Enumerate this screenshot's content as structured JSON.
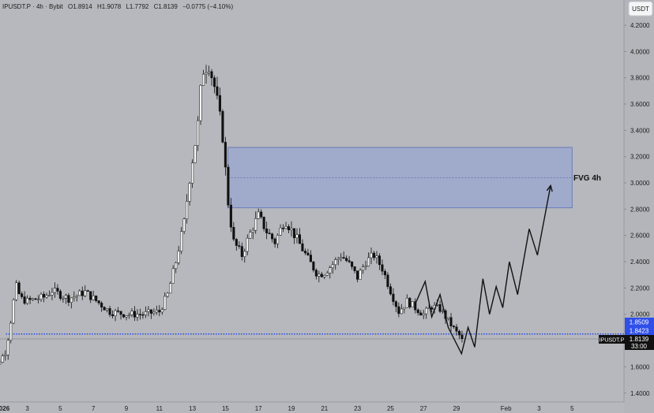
{
  "header": {
    "symbol": "IPUSDT.P · 4h · Bybit",
    "open": "O1.8914",
    "high": "H1.9078",
    "low": "L1.7792",
    "close": "C1.8139",
    "change": "−0.0775 (−4.10%)",
    "currency_button": "USDT"
  },
  "price_tags": {
    "level_a": "1.8509",
    "level_b": "1.8423",
    "symbol_tag": "IPUSDT.P",
    "current_price": "1.8139",
    "countdown": "33:00"
  },
  "annotation": {
    "fvg_label": "FVG 4h"
  },
  "colors": {
    "background": "#b6b8bd",
    "fvg_fill": "#8e9fd6",
    "fvg_border": "#5c6fb8",
    "support_line": "#2f4fe8",
    "candle_up": "#ffffff",
    "candle_down": "#111111"
  },
  "chart_data": {
    "type": "candlestick",
    "timeframe": "4h",
    "y_axis": {
      "min": 1.4,
      "max": 4.2,
      "ticks": [
        "4.2000",
        "4.0000",
        "3.8000",
        "3.6000",
        "3.4000",
        "3.2000",
        "3.0000",
        "2.8000",
        "2.6000",
        "2.4000",
        "2.2000",
        "2.0000",
        "1.8000",
        "1.6000",
        "1.4000"
      ]
    },
    "x_ticks": [
      {
        "label": "2026",
        "day": 1.5
      },
      {
        "label": "3",
        "day": 3
      },
      {
        "label": "5",
        "day": 5
      },
      {
        "label": "7",
        "day": 7
      },
      {
        "label": "9",
        "day": 9
      },
      {
        "label": "11",
        "day": 11
      },
      {
        "label": "13",
        "day": 13
      },
      {
        "label": "15",
        "day": 15
      },
      {
        "label": "17",
        "day": 17
      },
      {
        "label": "19",
        "day": 19
      },
      {
        "label": "21",
        "day": 21
      },
      {
        "label": "23",
        "day": 23
      },
      {
        "label": "25",
        "day": 25
      },
      {
        "label": "27",
        "day": 27
      },
      {
        "label": "29",
        "day": 29
      },
      {
        "label": "Feb",
        "day": 32
      },
      {
        "label": "3",
        "day": 34
      },
      {
        "label": "5",
        "day": 36
      }
    ],
    "anchors": [
      [
        0.5,
        1.48
      ],
      [
        1.2,
        1.62
      ],
      [
        1.7,
        1.72
      ],
      [
        2.0,
        1.95
      ],
      [
        2.3,
        2.22
      ],
      [
        2.6,
        2.12
      ],
      [
        3.0,
        2.1
      ],
      [
        4.0,
        2.13
      ],
      [
        4.5,
        2.18
      ],
      [
        5.5,
        2.12
      ],
      [
        6.5,
        2.17
      ],
      [
        7.5,
        2.07
      ],
      [
        8.0,
        2.02
      ],
      [
        9.0,
        2.0
      ],
      [
        10.0,
        2.0
      ],
      [
        11.0,
        2.02
      ],
      [
        11.5,
        2.15
      ],
      [
        12.0,
        2.4
      ],
      [
        12.5,
        2.7
      ],
      [
        12.9,
        3.1
      ],
      [
        13.3,
        3.4
      ],
      [
        13.6,
        3.85
      ],
      [
        14.0,
        3.9
      ],
      [
        14.4,
        3.7
      ],
      [
        14.8,
        3.4
      ],
      [
        15.2,
        2.8
      ],
      [
        15.5,
        2.55
      ],
      [
        16.0,
        2.45
      ],
      [
        16.6,
        2.65
      ],
      [
        17.0,
        2.75
      ],
      [
        17.5,
        2.63
      ],
      [
        18.0,
        2.55
      ],
      [
        18.6,
        2.72
      ],
      [
        19.2,
        2.6
      ],
      [
        20.0,
        2.42
      ],
      [
        20.6,
        2.3
      ],
      [
        21.0,
        2.32
      ],
      [
        21.5,
        2.38
      ],
      [
        22.0,
        2.45
      ],
      [
        22.4,
        2.4
      ],
      [
        23.0,
        2.28
      ],
      [
        23.5,
        2.4
      ],
      [
        24.0,
        2.45
      ],
      [
        24.5,
        2.35
      ],
      [
        25.0,
        2.18
      ],
      [
        25.5,
        2.02
      ],
      [
        26.0,
        2.1
      ],
      [
        26.5,
        2.05
      ],
      [
        27.0,
        2.0
      ],
      [
        27.5,
        2.06
      ],
      [
        28.0,
        2.04
      ],
      [
        28.5,
        1.95
      ],
      [
        29.0,
        1.86
      ],
      [
        29.4,
        1.81
      ]
    ],
    "projection": [
      [
        26.5,
        2.08
      ],
      [
        27.1,
        2.25
      ],
      [
        27.5,
        1.98
      ],
      [
        28.0,
        2.15
      ],
      [
        28.5,
        1.9
      ],
      [
        29.3,
        1.7
      ],
      [
        29.7,
        1.9
      ],
      [
        30.1,
        1.75
      ],
      [
        30.6,
        2.27
      ],
      [
        31.0,
        2.0
      ],
      [
        31.4,
        2.21
      ],
      [
        31.8,
        2.05
      ],
      [
        32.2,
        2.4
      ],
      [
        32.7,
        2.15
      ],
      [
        33.4,
        2.65
      ],
      [
        33.9,
        2.45
      ],
      [
        34.7,
        2.98
      ]
    ],
    "fvg_zone": {
      "low": 2.81,
      "high": 3.27,
      "mid": 3.04,
      "start_day": 15.15,
      "end_day": 36
    },
    "support_level": 1.85,
    "last_close": 1.8139
  }
}
